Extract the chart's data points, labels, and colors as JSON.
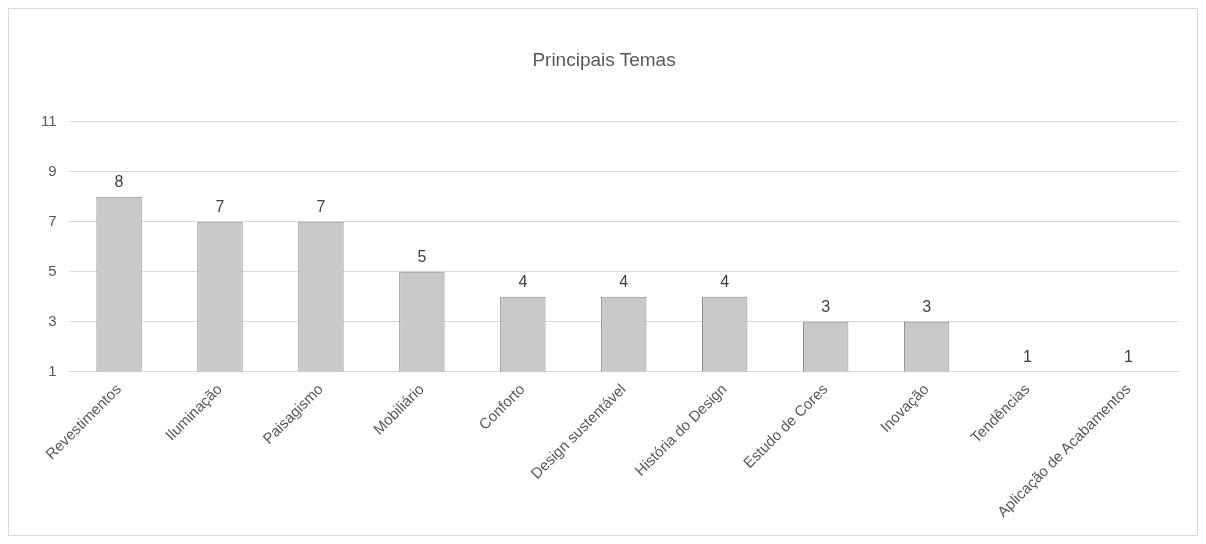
{
  "chart_data": {
    "type": "bar",
    "title": "Principais Temas",
    "categories": [
      "Revestimentos",
      "Iluminação",
      "Paisagismo",
      "Mobiliário",
      "Conforto",
      "Design sustentável",
      "História do Design",
      "Estudo de Cores",
      "Inovação",
      "Tendências",
      "Aplicação de Acabamentos"
    ],
    "values": [
      8,
      7,
      7,
      5,
      4,
      4,
      4,
      3,
      3,
      1,
      1
    ],
    "color": "#c9c9c9",
    "ylim": [
      1,
      11
    ],
    "yticks": [
      1,
      3,
      5,
      7,
      9,
      11
    ],
    "grid": "y",
    "data_labels": true
  }
}
